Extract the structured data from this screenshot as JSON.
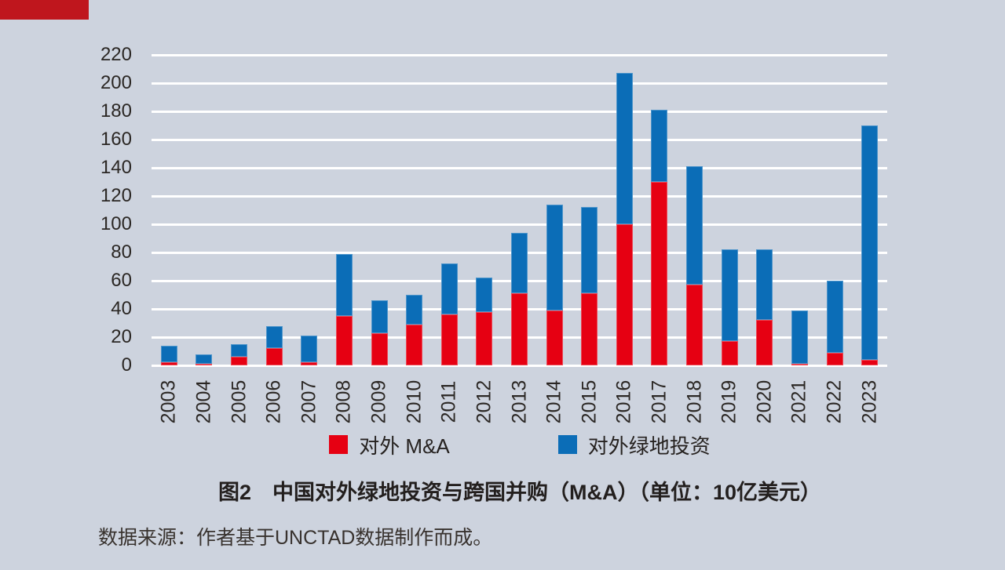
{
  "page": {
    "background_color": "#cdd3de",
    "header_block_color": "#bf161d"
  },
  "chart_data": {
    "type": "bar",
    "stacked": true,
    "title": "图2　中国对外绿地投资与跨国并购（M&A）（单位：10亿美元）",
    "source": "数据来源：作者基于UNCTAD数据制作而成。",
    "unit": "10亿美元",
    "categories": [
      "2003",
      "2004",
      "2005",
      "2006",
      "2007",
      "2008",
      "2009",
      "2010",
      "2011",
      "2012",
      "2013",
      "2014",
      "2015",
      "2016",
      "2017",
      "2018",
      "2019",
      "2020",
      "2021",
      "2022",
      "2023"
    ],
    "series": [
      {
        "name": "对外 M&A",
        "color": "#e60012",
        "values": [
          2,
          1,
          6,
          12,
          2,
          35,
          23,
          29,
          36,
          38,
          51,
          39,
          51,
          100,
          130,
          57,
          17,
          32,
          1,
          9,
          4
        ]
      },
      {
        "name": "对外绿地投资",
        "color": "#0b6db7",
        "values": [
          12,
          7,
          9,
          16,
          19,
          44,
          23,
          21,
          36,
          24,
          43,
          75,
          61,
          107,
          51,
          84,
          65,
          50,
          38,
          51,
          166
        ]
      }
    ],
    "totals": [
      14,
      8,
      15,
      28,
      21,
      79,
      46,
      50,
      72,
      62,
      94,
      114,
      112,
      207,
      181,
      141,
      82,
      82,
      39,
      60,
      170
    ],
    "ylim": [
      0,
      220
    ],
    "ytick_interval": 20,
    "yticks": [
      0,
      20,
      40,
      60,
      80,
      100,
      120,
      140,
      160,
      180,
      200,
      220
    ],
    "grid": true,
    "gridline_color": "#ffffff",
    "legend_position": "bottom"
  }
}
